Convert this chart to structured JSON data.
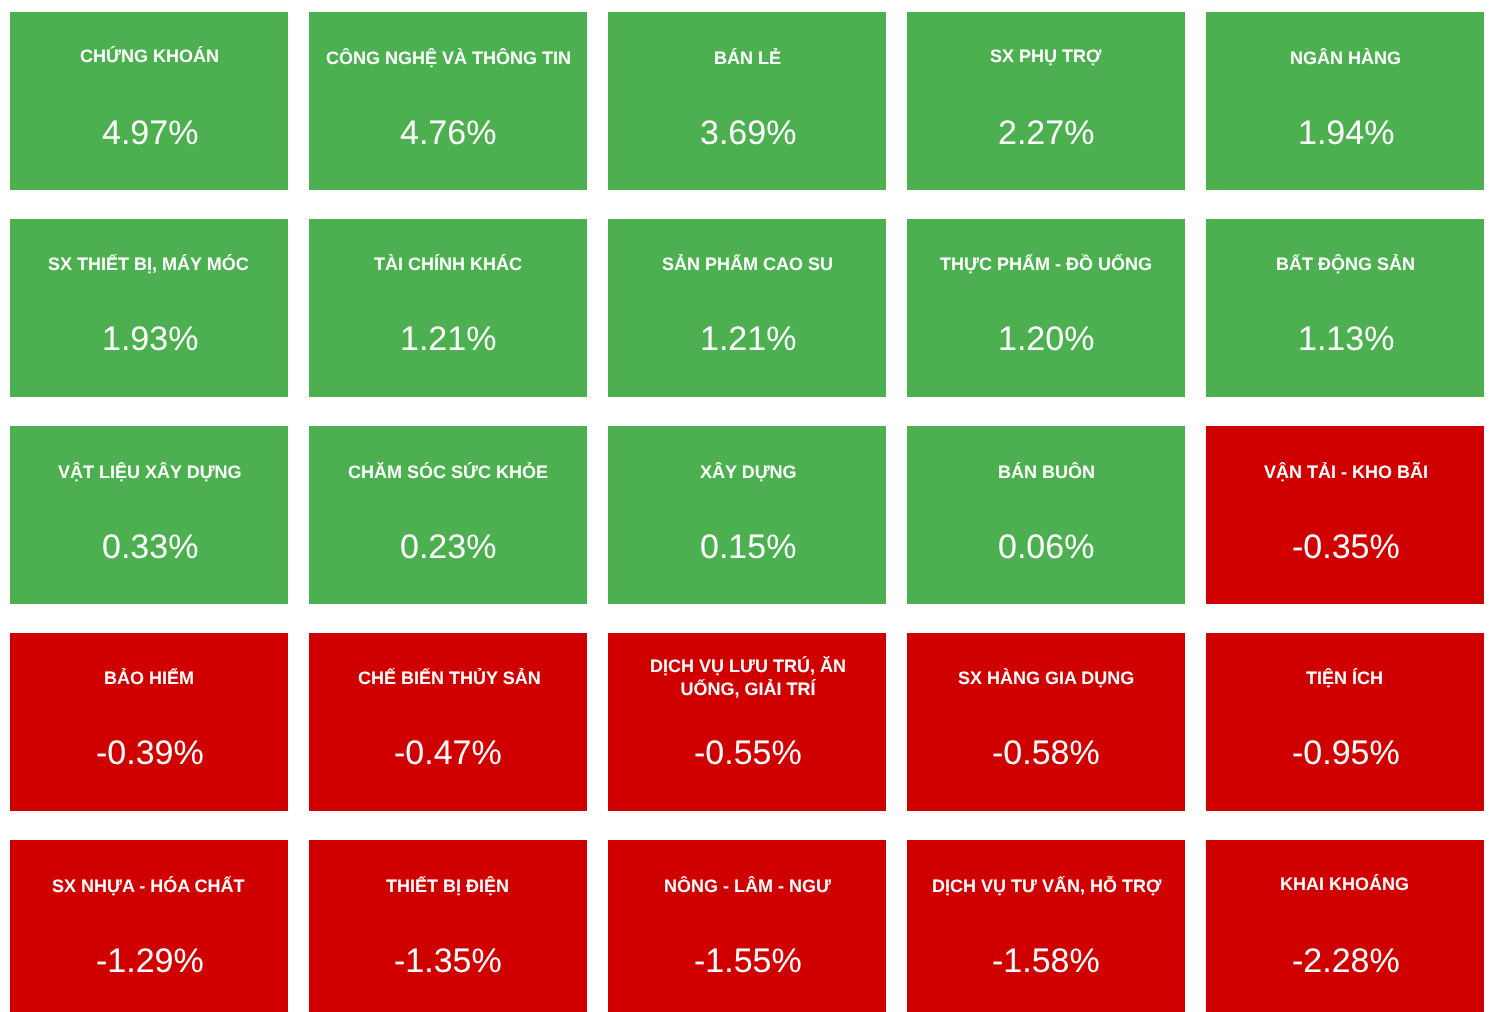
{
  "chart_data": {
    "type": "other",
    "categories": [
      "CHỨNG KHOÁN",
      "CÔNG NGHỆ VÀ THÔNG TIN",
      "BÁN LẺ",
      "SX PHỤ TRỢ",
      "NGÂN HÀNG",
      "SX THIẾT BỊ, MÁY MÓC",
      "TÀI CHÍNH KHÁC",
      "SẢN PHẨM CAO SU",
      "THỰC PHẨM - ĐỒ UỐNG",
      "BẤT ĐỘNG SẢN",
      "VẬT LIỆU XÂY DỰNG",
      "CHĂM SÓC SỨC KHỎE",
      "XÂY DỰNG",
      "BÁN BUÔN",
      "VẬN TẢI - KHO BÃI",
      "BẢO HIỂM",
      "CHẾ BIẾN THỦY SẢN",
      "DỊCH VỤ LƯU TRÚ, ĂN UỐNG, GIẢI TRÍ",
      "SX HÀNG GIA DỤNG",
      "TIỆN ÍCH",
      "SX NHỰA - HÓA CHẤT",
      "THIẾT BỊ ĐIỆN",
      "NÔNG - LÂM - NGƯ",
      "DỊCH VỤ TƯ VẤN, HỖ TRỢ",
      "KHAI KHOÁNG"
    ],
    "values": [
      4.97,
      4.76,
      3.69,
      2.27,
      1.94,
      1.93,
      1.21,
      1.21,
      1.2,
      1.13,
      0.33,
      0.23,
      0.15,
      0.06,
      -0.35,
      -0.39,
      -0.47,
      -0.55,
      -0.58,
      -0.95,
      -1.29,
      -1.35,
      -1.55,
      -1.58,
      -2.28
    ],
    "value_labels": [
      "4.97%",
      "4.76%",
      "3.69%",
      "2.27%",
      "1.94%",
      "1.93%",
      "1.21%",
      "1.21%",
      "1.20%",
      "1.13%",
      "0.33%",
      "0.23%",
      "0.15%",
      "0.06%",
      "-0.35%",
      "-0.39%",
      "-0.47%",
      "-0.55%",
      "-0.58%",
      "-0.95%",
      "-1.29%",
      "-1.35%",
      "-1.55%",
      "-1.58%",
      "-2.28%"
    ],
    "colors": [
      "#4caf50",
      "#4caf50",
      "#4caf50",
      "#4caf50",
      "#4caf50",
      "#4caf50",
      "#4caf50",
      "#4caf50",
      "#4caf50",
      "#4caf50",
      "#4caf50",
      "#4caf50",
      "#4caf50",
      "#4caf50",
      "#d00000",
      "#d00000",
      "#d00000",
      "#d00000",
      "#d00000",
      "#d00000",
      "#d00000",
      "#d00000",
      "#d00000",
      "#d00000",
      "#d00000"
    ]
  }
}
